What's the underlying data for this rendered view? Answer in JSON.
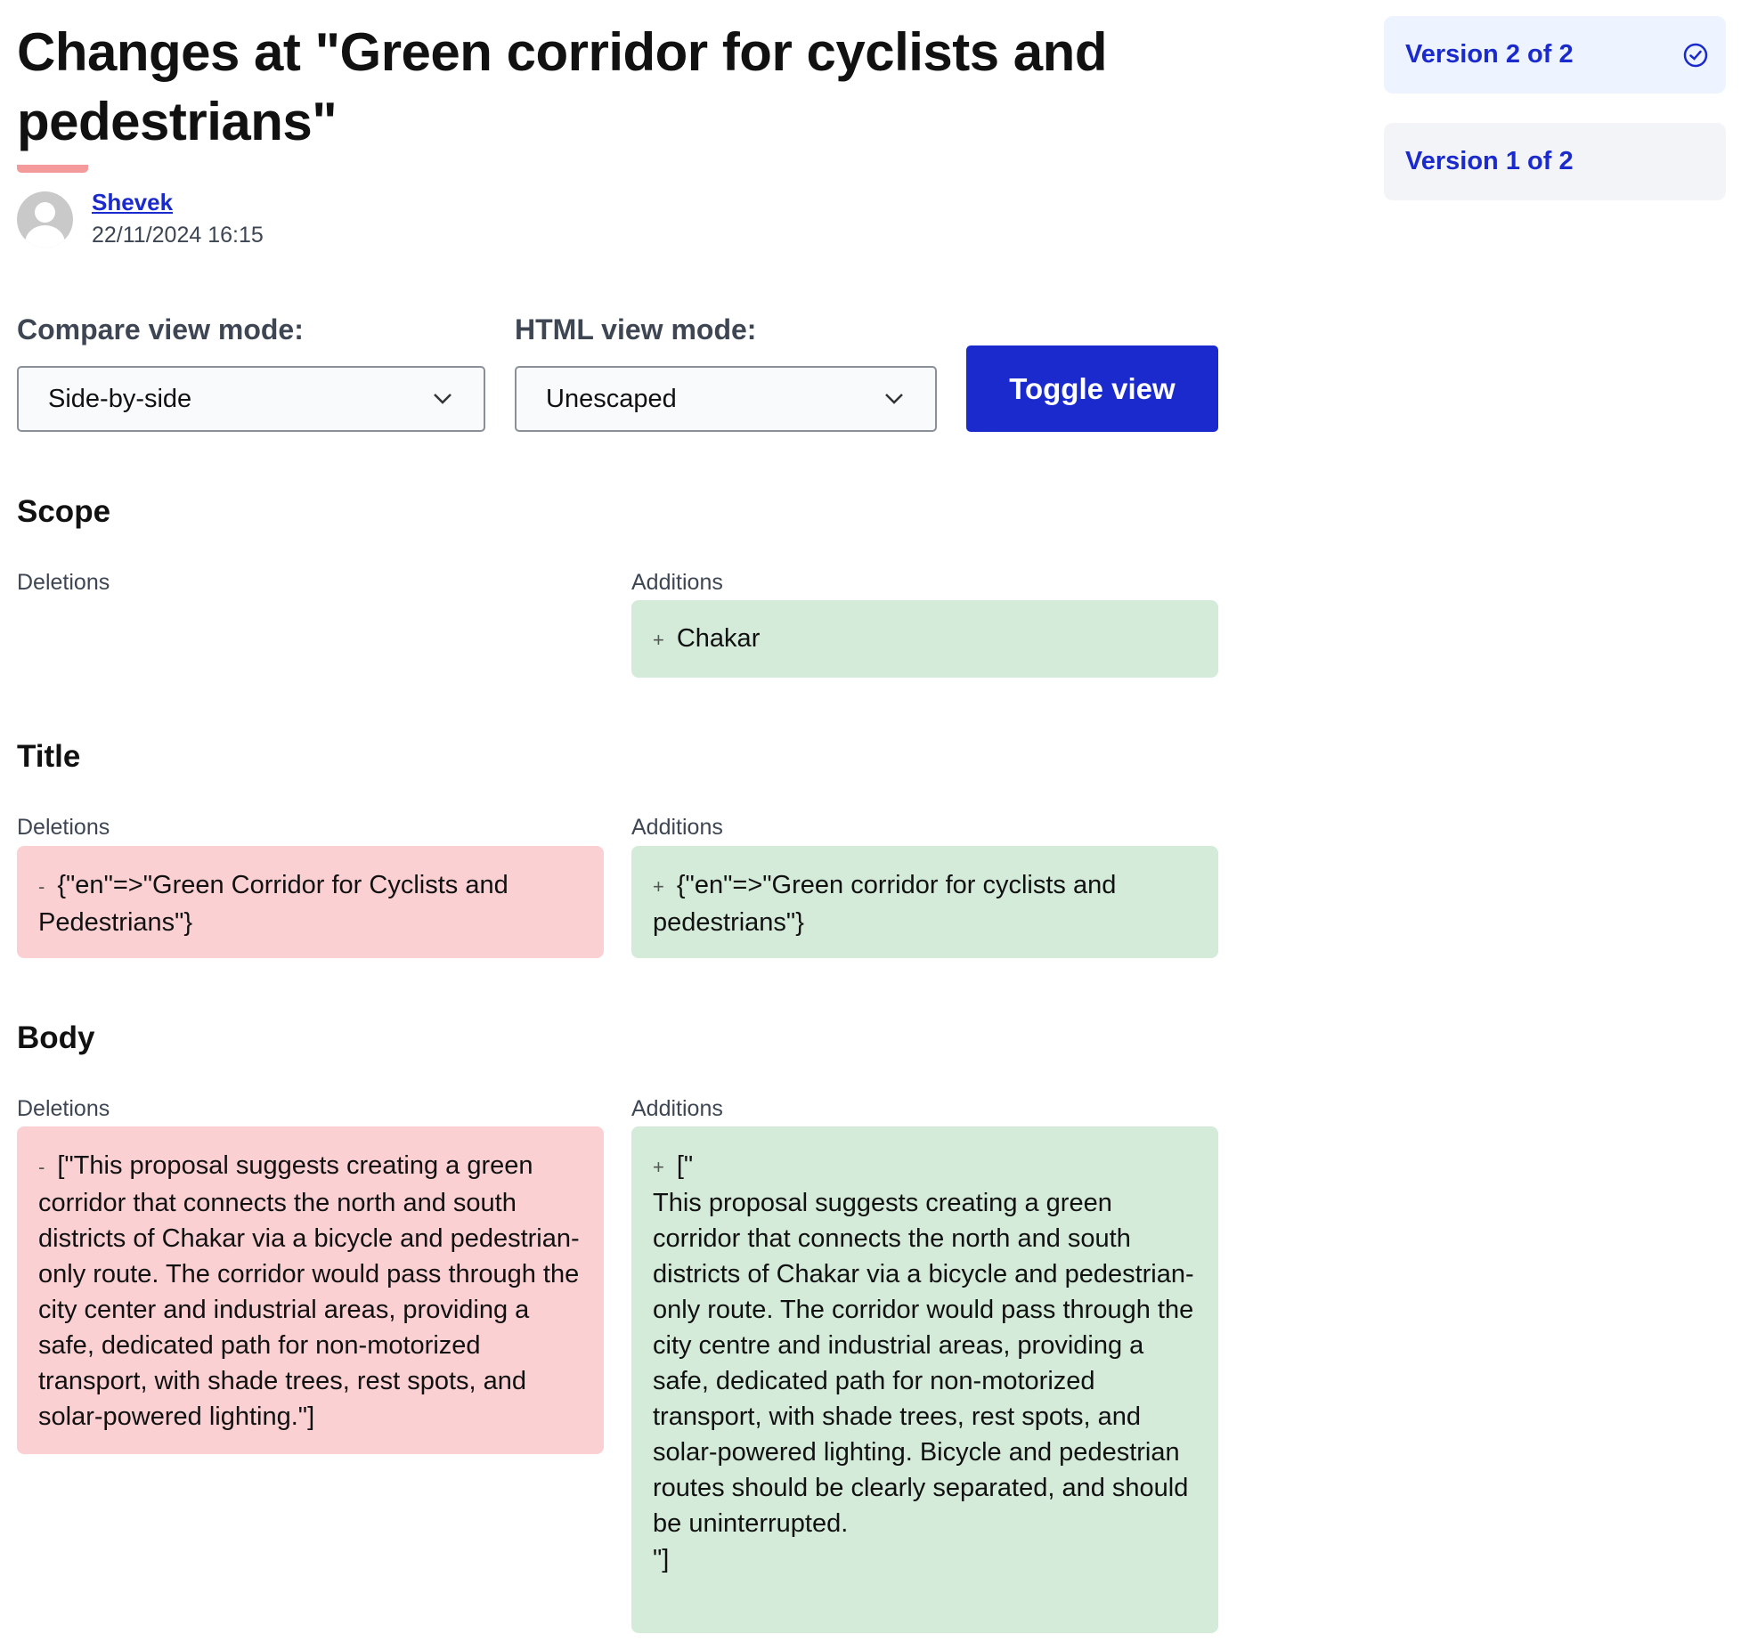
{
  "header": {
    "title": "Changes at \"Green corridor for cyclists and pedestrians\"",
    "author": "Shevek",
    "date": "22/11/2024 16:15"
  },
  "versions": [
    {
      "label": "Version 2 of 2",
      "current": true,
      "icon": "check-circle-icon"
    },
    {
      "label": "Version 1 of 2",
      "current": false
    }
  ],
  "controls": {
    "compare_label": "Compare view mode:",
    "compare_value": "Side-by-side",
    "html_label": "HTML view mode:",
    "html_value": "Unescaped",
    "toggle_label": "Toggle view"
  },
  "labels": {
    "deletions": "Deletions",
    "additions": "Additions",
    "minus": "-",
    "plus": "+"
  },
  "sections": [
    {
      "heading": "Scope",
      "deletion": "",
      "addition": "Chakar"
    },
    {
      "heading": "Title",
      "deletion": "{\"en\"=>\"Green Corridor for Cyclists and Pedestrians\"}",
      "addition": "{\"en\"=>\"Green corridor for cyclists and pedestrians\"}"
    },
    {
      "heading": "Body",
      "deletion": "[\"This proposal suggests creating a green corridor that connects the north and south districts of Chakar via a bicycle and pedestrian-only route. The corridor would pass through the city center and industrial areas, providing a safe, dedicated path for non-motorized transport, with shade trees, rest spots, and solar-powered lighting.\"]",
      "addition": "[\"\nThis proposal suggests creating a green corridor that connects the north and south districts of Chakar via a bicycle and pedestrian-only route. The corridor would pass through the city centre and industrial areas, providing a safe, dedicated path for non-motorized transport, with shade trees, rest spots, and solar-powered lighting. Bicycle and pedestrian routes should be clearly separated, and should be uninterrupted.\n\"]"
    }
  ],
  "colors": {
    "accent": "#1a2acc",
    "deletion_bg": "#fbd0d3",
    "addition_bg": "#d4ebda",
    "title_underline": "#f59a9a"
  }
}
